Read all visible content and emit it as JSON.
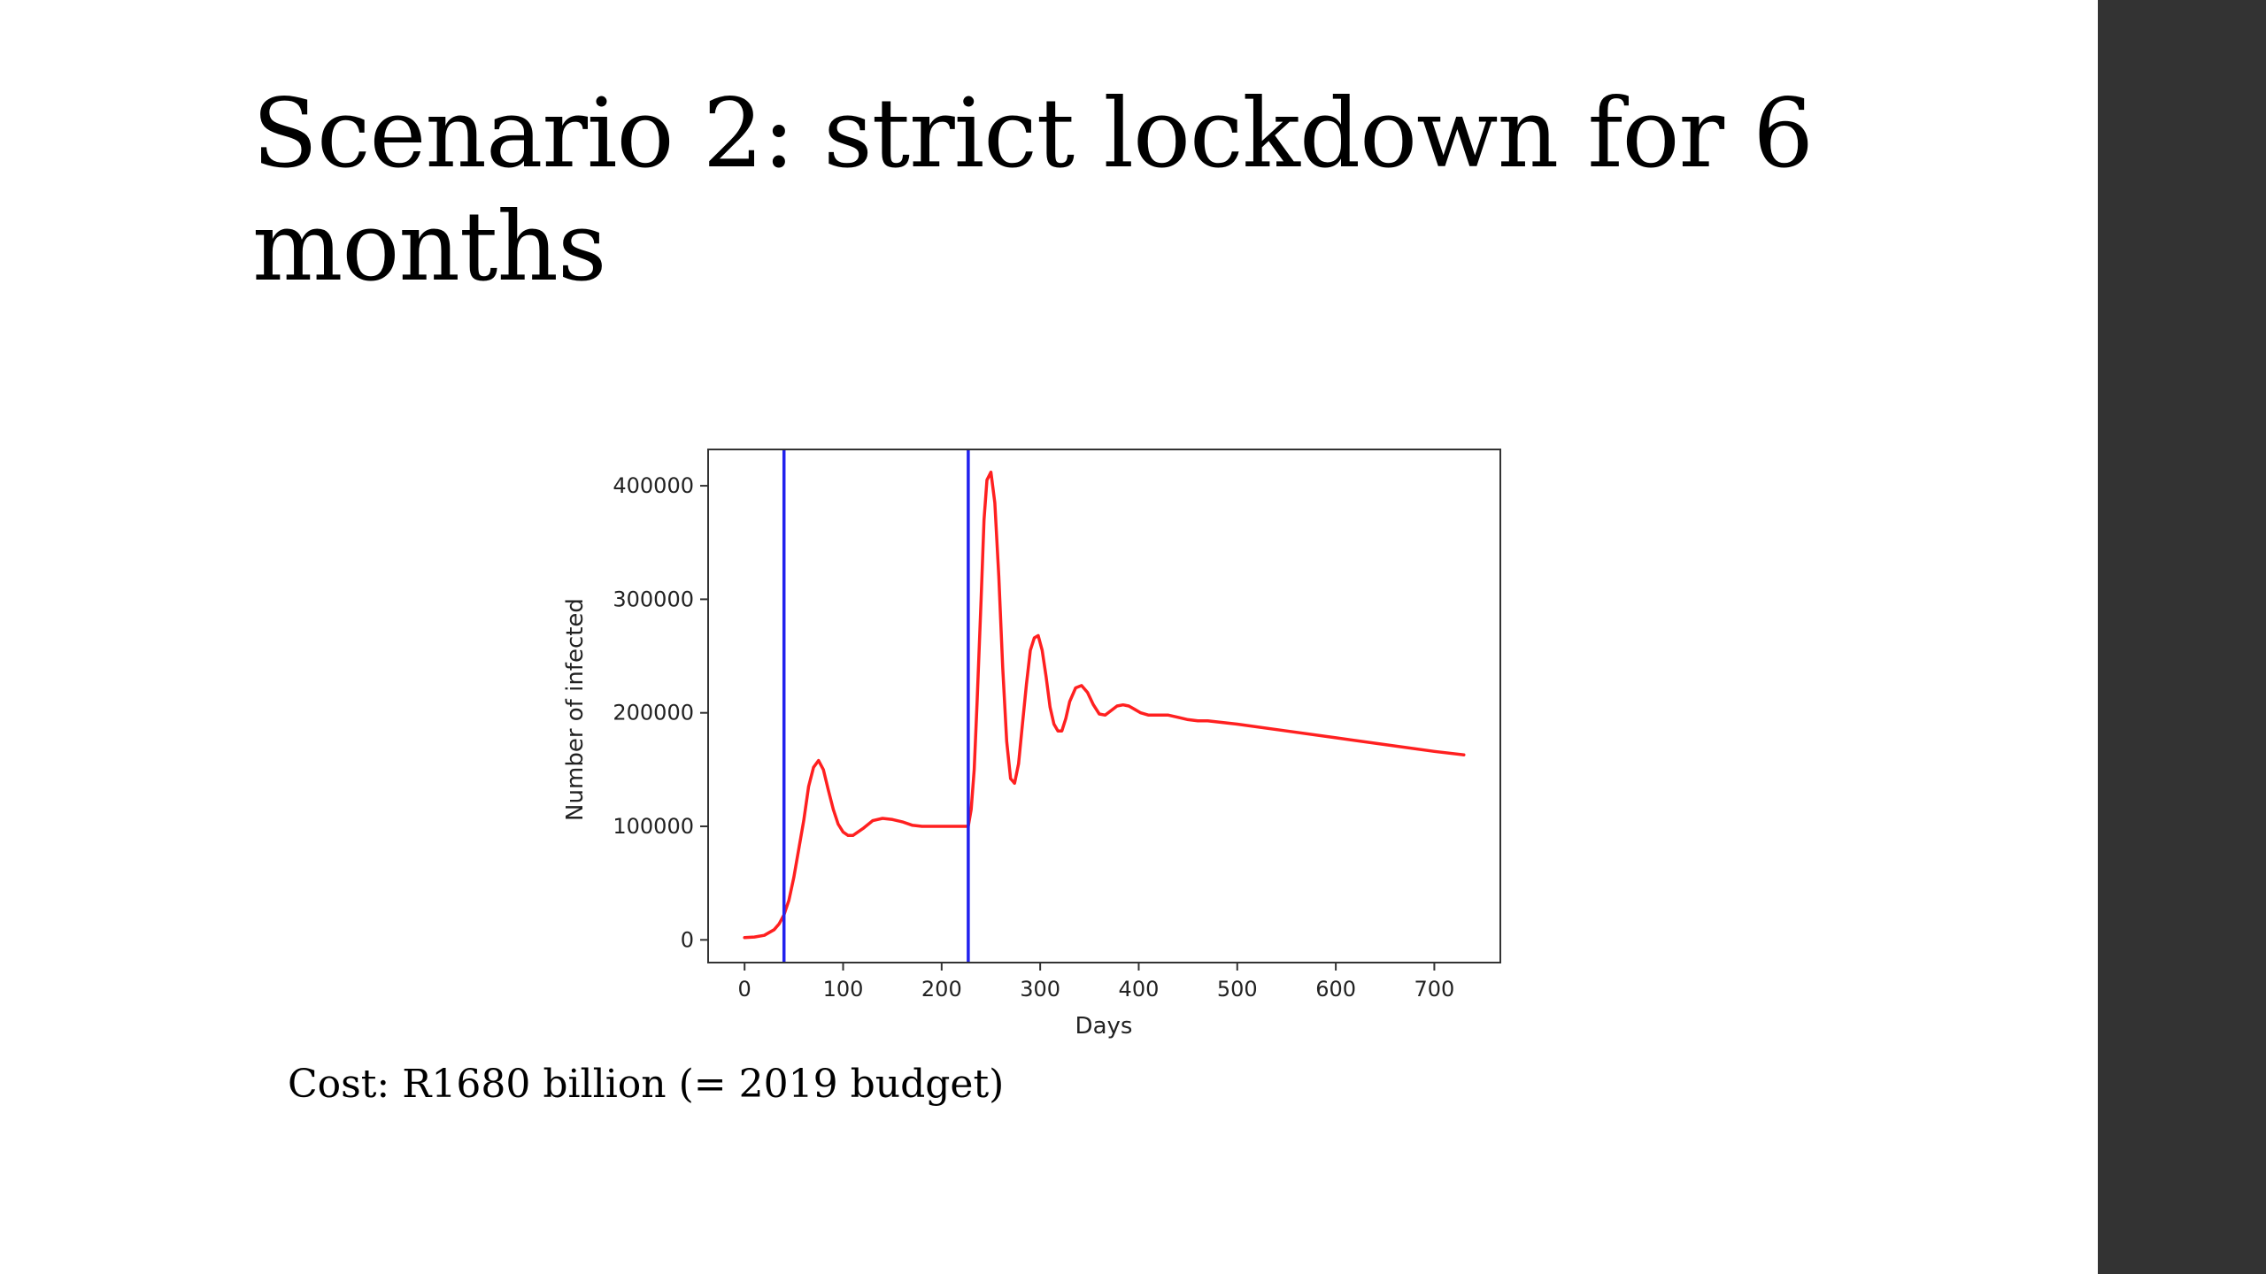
{
  "slide": {
    "title": "Scenario 2: strict lockdown for 6 months",
    "cost_note": "Cost: R1680 billion (= 2019 budget)"
  },
  "colors": {
    "side_panel": "#333333",
    "infected_line": "#ff2020",
    "lockdown_lines": "#2222ee",
    "axes": "#333333"
  },
  "chart_data": {
    "type": "line",
    "title": "",
    "xlabel": "Days",
    "ylabel": "Number of infected",
    "xlim": [
      -37,
      767
    ],
    "ylim": [
      -20000,
      432000
    ],
    "xticks": [
      0,
      100,
      200,
      300,
      400,
      500,
      600,
      700
    ],
    "yticks": [
      0,
      100000,
      200000,
      300000,
      400000
    ],
    "grid": false,
    "legend": "none",
    "vlines": [
      40,
      227
    ],
    "series": [
      {
        "x": [
          0,
          10,
          20,
          30,
          35,
          40,
          45,
          50,
          55,
          60,
          65,
          70,
          75,
          80,
          85,
          90,
          95,
          100,
          105,
          110,
          120,
          130,
          140,
          150,
          160,
          170,
          180,
          190,
          200,
          210,
          220,
          227,
          230,
          233,
          236,
          240,
          243,
          246,
          250,
          254,
          258,
          262,
          266,
          270,
          274,
          278,
          282,
          286,
          290,
          294,
          298,
          302,
          306,
          310,
          314,
          318,
          322,
          326,
          330,
          336,
          342,
          348,
          354,
          360,
          366,
          372,
          378,
          384,
          390,
          396,
          402,
          410,
          420,
          430,
          440,
          450,
          460,
          470,
          480,
          500,
          550,
          600,
          650,
          700,
          730
        ],
        "y": [
          2000,
          2500,
          4000,
          9000,
          14000,
          22000,
          35000,
          55000,
          80000,
          105000,
          135000,
          152000,
          158000,
          150000,
          132000,
          115000,
          102000,
          95000,
          92000,
          92000,
          98000,
          105000,
          107000,
          106000,
          104000,
          101000,
          100000,
          100000,
          100000,
          100000,
          100000,
          100000,
          115000,
          150000,
          210000,
          300000,
          370000,
          405000,
          412000,
          385000,
          320000,
          240000,
          175000,
          142000,
          138000,
          155000,
          190000,
          225000,
          255000,
          266000,
          268000,
          255000,
          232000,
          205000,
          190000,
          184000,
          184000,
          195000,
          210000,
          222000,
          224000,
          218000,
          207000,
          199000,
          198000,
          202000,
          206000,
          207000,
          206000,
          203000,
          200000,
          198000,
          198000,
          198000,
          196000,
          194000,
          193000,
          193000,
          192000,
          190000,
          184000,
          178000,
          172000,
          166000,
          163000
        ]
      }
    ]
  }
}
